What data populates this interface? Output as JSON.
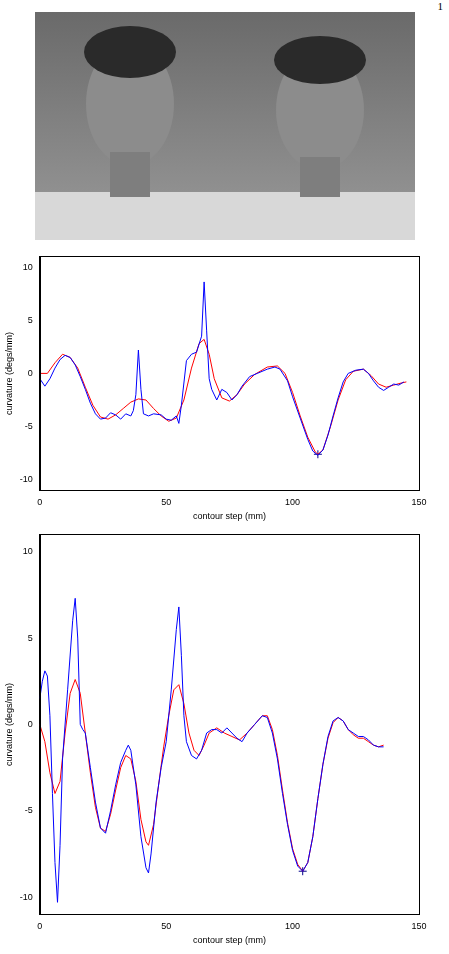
{
  "page_number": 1,
  "chart_data": [
    {
      "type": "line",
      "x_label": "contour step (mm)",
      "y_label": "curvature (degs/mm)",
      "xlim": [
        0,
        150
      ],
      "xticks": [
        0,
        50,
        100,
        150
      ],
      "ylim": [
        -11,
        11
      ],
      "yticks": [
        -10,
        -5,
        0,
        5,
        10
      ],
      "grid": false,
      "series": [
        {
          "type": "line",
          "color": "#0000ff",
          "x": [
            0,
            2,
            4,
            6,
            8,
            10,
            12,
            14,
            16,
            18,
            20,
            22,
            24,
            26,
            28,
            30,
            32,
            34,
            36,
            37,
            38,
            39,
            40,
            41,
            43,
            45,
            48,
            50,
            52,
            54,
            55,
            56,
            58,
            60,
            62,
            64,
            65,
            66,
            67,
            68,
            70,
            72,
            74,
            76,
            78,
            80,
            83,
            86,
            90,
            93,
            95,
            98,
            100,
            103,
            106,
            108,
            110,
            112,
            114,
            116,
            118,
            120,
            122,
            125,
            128,
            130,
            132,
            134,
            136,
            138,
            140,
            142,
            144
          ],
          "values": [
            -0.5,
            -1.2,
            -0.5,
            0.5,
            1.3,
            1.7,
            1.5,
            0.8,
            -0.3,
            -1.5,
            -2.8,
            -3.8,
            -4.3,
            -4.2,
            -3.7,
            -3.9,
            -4.3,
            -3.8,
            -4.0,
            -3.5,
            -2.0,
            2.2,
            -1.5,
            -3.8,
            -4.0,
            -3.8,
            -3.9,
            -4.3,
            -4.4,
            -4.0,
            -4.7,
            -3.0,
            1.2,
            1.8,
            2.0,
            3.5,
            8.6,
            4.0,
            -0.5,
            -1.5,
            -2.5,
            -1.5,
            -1.8,
            -2.5,
            -2.0,
            -1.2,
            -0.3,
            0.0,
            0.4,
            0.6,
            0.4,
            -0.7,
            -2.2,
            -4.2,
            -6.2,
            -7.3,
            -7.7,
            -7.2,
            -5.8,
            -4.0,
            -2.3,
            -0.8,
            0.0,
            0.3,
            0.4,
            0.0,
            -0.7,
            -1.3,
            -1.6,
            -1.3,
            -1.0,
            -1.1,
            -0.8
          ]
        },
        {
          "type": "line",
          "color": "#ff0000",
          "x": [
            0,
            3,
            6,
            9,
            12,
            15,
            18,
            21,
            24,
            27,
            30,
            33,
            36,
            39,
            42,
            45,
            48,
            51,
            54,
            57,
            60,
            63,
            65,
            67,
            69,
            72,
            75,
            78,
            81,
            85,
            90,
            94,
            97,
            100,
            103,
            106,
            109,
            110,
            112,
            115,
            118,
            121,
            124,
            128,
            131,
            134,
            137,
            140,
            143,
            145
          ],
          "values": [
            0,
            0,
            1.0,
            1.8,
            1.5,
            0.5,
            -1.3,
            -3.0,
            -4.1,
            -4.3,
            -3.9,
            -3.3,
            -2.7,
            -2.4,
            -2.5,
            -3.3,
            -4.0,
            -4.5,
            -4.2,
            -2.5,
            0.5,
            2.8,
            3.2,
            1.8,
            -0.5,
            -2.3,
            -2.6,
            -2.0,
            -1.0,
            -0.1,
            0.6,
            0.7,
            0,
            -1.8,
            -4.0,
            -6.0,
            -7.4,
            -7.6,
            -7.2,
            -5.0,
            -2.5,
            -0.6,
            0.2,
            0.4,
            -0.2,
            -1.0,
            -1.3,
            -1.1,
            -0.9,
            -0.8
          ]
        },
        {
          "type": "scatter",
          "marker": "plus",
          "color": "#00008b",
          "x": [
            110
          ],
          "values": [
            -7.6
          ]
        }
      ]
    },
    {
      "type": "line",
      "x_label": "contour step (mm)",
      "y_label": "curvature (degs/mm)",
      "xlim": [
        0,
        150
      ],
      "xticks": [
        0,
        50,
        100,
        150
      ],
      "ylim": [
        -11,
        11
      ],
      "yticks": [
        -10,
        -5,
        0,
        5,
        10
      ],
      "grid": false,
      "series": [
        {
          "type": "line",
          "color": "#0000ff",
          "x": [
            0,
            1,
            2,
            3,
            4,
            5,
            6,
            7,
            8,
            9,
            11,
            13,
            14,
            15,
            16,
            17,
            18,
            20,
            22,
            24,
            26,
            28,
            30,
            32,
            34,
            35,
            36,
            38,
            40,
            42,
            43,
            44,
            46,
            48,
            50,
            52,
            54,
            55,
            56,
            57,
            58,
            60,
            62,
            64,
            66,
            68,
            70,
            72,
            74,
            76,
            78,
            80,
            82,
            85,
            88,
            90,
            92,
            94,
            96,
            98,
            100,
            102,
            104,
            106,
            108,
            110,
            112,
            114,
            116,
            118,
            120,
            122,
            124,
            126,
            128,
            130,
            132,
            134,
            136
          ],
          "values": [
            1.5,
            2.5,
            3.1,
            2.8,
            0.5,
            -4,
            -8,
            -10.3,
            -7,
            -2,
            2.0,
            6.0,
            7.3,
            5.0,
            0.0,
            -0.3,
            -0.5,
            -2.5,
            -4.5,
            -6.0,
            -6.3,
            -5.0,
            -3.5,
            -2.2,
            -1.5,
            -1.2,
            -1.5,
            -3.5,
            -6.5,
            -8.3,
            -8.6,
            -7.5,
            -4.5,
            -2.5,
            -1.0,
            2.0,
            5.5,
            6.8,
            4.0,
            0.5,
            -1.0,
            -1.8,
            -2.0,
            -1.5,
            -0.5,
            -0.3,
            -0.3,
            -0.5,
            -0.2,
            -0.5,
            -0.8,
            -1.0,
            -0.5,
            0.0,
            0.5,
            0.4,
            -0.5,
            -2.0,
            -4.0,
            -5.8,
            -7.3,
            -8.2,
            -8.5,
            -8.0,
            -6.5,
            -4.3,
            -2.3,
            -0.7,
            0.2,
            0.4,
            0.2,
            -0.3,
            -0.5,
            -0.7,
            -0.7,
            -0.9,
            -1.2,
            -1.3,
            -1.3
          ]
        },
        {
          "type": "line",
          "color": "#ff0000",
          "x": [
            0,
            2,
            4,
            6,
            8,
            10,
            12,
            14,
            16,
            18,
            20,
            22,
            24,
            26,
            28,
            30,
            32,
            34,
            36,
            38,
            40,
            42,
            43,
            45,
            47,
            49,
            51,
            53,
            55,
            57,
            59,
            61,
            63,
            65,
            67,
            70,
            73,
            76,
            79,
            82,
            85,
            88,
            90,
            92,
            94,
            96,
            98,
            100,
            102,
            104,
            106,
            108,
            110,
            112,
            114,
            116,
            118,
            120,
            122,
            124,
            126,
            128,
            130,
            132,
            134,
            136
          ],
          "values": [
            0,
            -1,
            -2.8,
            -4,
            -3.3,
            -0.5,
            1.8,
            2.6,
            1.8,
            -0.5,
            -2.8,
            -4.8,
            -6.0,
            -6.2,
            -5.2,
            -3.8,
            -2.5,
            -1.8,
            -2.0,
            -3.3,
            -5.5,
            -6.8,
            -7.0,
            -5.8,
            -3.5,
            -1.3,
            0.5,
            2.0,
            2.3,
            1.2,
            -0.5,
            -1.5,
            -1.8,
            -1.2,
            -0.5,
            -0.2,
            -0.5,
            -0.7,
            -0.9,
            -0.5,
            0,
            0.5,
            0.5,
            -0.3,
            -1.8,
            -3.8,
            -5.7,
            -7.2,
            -8.1,
            -8.5,
            -8.0,
            -6.5,
            -4.3,
            -2.3,
            -0.8,
            0.1,
            0.4,
            0.2,
            -0.3,
            -0.6,
            -0.8,
            -0.8,
            -1.0,
            -1.2,
            -1.3,
            -1.2
          ]
        },
        {
          "type": "scatter",
          "marker": "plus",
          "color": "#00008b",
          "x": [
            104
          ],
          "values": [
            -8.5
          ]
        }
      ]
    }
  ]
}
